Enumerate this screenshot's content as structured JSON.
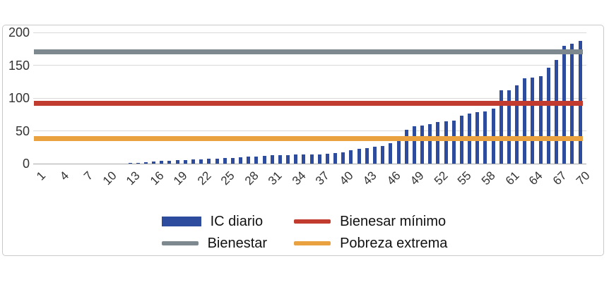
{
  "chart_data": {
    "type": "combo",
    "title": "",
    "xlabel": "",
    "ylabel": "",
    "ylim": [
      0,
      200
    ],
    "yticks": [
      0,
      50,
      100,
      150,
      200
    ],
    "xtick_labels": [
      "1",
      "4",
      "7",
      "10",
      "13",
      "16",
      "19",
      "22",
      "25",
      "28",
      "31",
      "34",
      "37",
      "40",
      "43",
      "46",
      "49",
      "52",
      "55",
      "58",
      "61",
      "64",
      "67",
      "70"
    ],
    "categories": [
      1,
      2,
      3,
      4,
      5,
      6,
      7,
      8,
      9,
      10,
      11,
      12,
      13,
      14,
      15,
      16,
      17,
      18,
      19,
      20,
      21,
      22,
      23,
      24,
      25,
      26,
      27,
      28,
      29,
      30,
      31,
      32,
      33,
      34,
      35,
      36,
      37,
      38,
      39,
      40,
      41,
      42,
      43,
      44,
      45,
      46,
      47,
      48,
      49,
      50,
      51,
      52,
      53,
      54,
      55,
      56,
      57,
      58,
      59,
      60,
      61,
      62,
      63,
      64,
      65,
      66,
      67,
      68,
      69,
      70
    ],
    "series": [
      {
        "name": "IC diario",
        "type": "bar",
        "color": "#2e4c9e",
        "values": [
          0,
          0,
          0,
          0,
          0,
          0,
          0,
          0,
          0,
          0,
          0,
          0,
          1,
          1.5,
          2,
          3,
          4,
          4.5,
          5,
          5.5,
          6,
          6.5,
          7,
          8,
          8.5,
          9,
          10,
          10.5,
          11,
          12,
          12.5,
          13,
          13,
          13.5,
          14,
          14,
          14.5,
          15,
          16,
          17,
          20,
          23,
          24,
          26,
          27,
          31,
          42,
          52,
          57,
          58,
          60,
          63,
          64,
          66,
          73,
          76,
          79,
          80,
          84,
          112,
          112,
          119,
          130,
          131,
          133,
          146,
          158,
          180,
          183,
          187
        ]
      },
      {
        "name": "Bienestar",
        "type": "line",
        "color": "#7e898f",
        "value": 170
      },
      {
        "name": "Bienesar mínimo",
        "type": "line",
        "color": "#c13b2e",
        "value": 92
      },
      {
        "name": "Pobreza extrema",
        "type": "line",
        "color": "#e9a23f",
        "value": 38
      }
    ],
    "legend": {
      "position": "bottom",
      "entries": [
        {
          "label": "IC diario",
          "swatch": "bar",
          "color": "#2e4c9e"
        },
        {
          "label": "Bienesar mínimo",
          "swatch": "line",
          "color": "#c13b2e"
        },
        {
          "label": "Bienestar",
          "swatch": "line",
          "color": "#7e898f"
        },
        {
          "label": "Pobreza extrema",
          "swatch": "line",
          "color": "#e9a23f"
        }
      ]
    },
    "grid": "horizontal",
    "grid_color": "#d9d9d9",
    "axis_line_color": "#a8a8a8",
    "frame_border_color": "#c9c9c9"
  }
}
